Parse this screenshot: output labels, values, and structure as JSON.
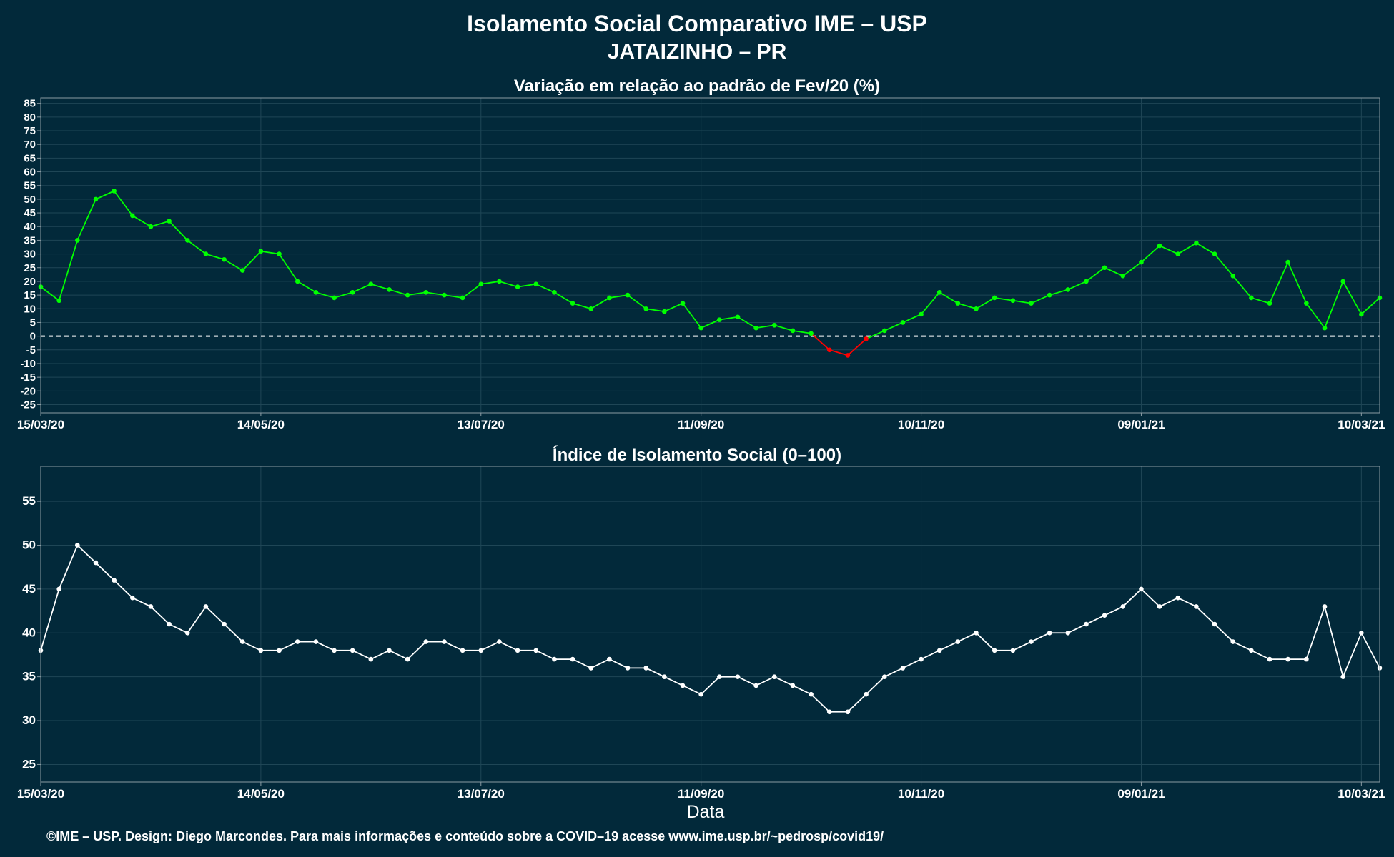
{
  "title": "Isolamento Social Comparativo IME – USP",
  "subtitle": "JATAIZINHO – PR",
  "xlabel": "Data",
  "footer": "©IME – USP. Design: Diego Marcondes. Para mais informações e conteúdo sobre a COVID–19 acesse www.ime.usp.br/~pedrosp/covid19/",
  "colors": {
    "background": "#02293A",
    "positive": "#00FF00",
    "negative": "#FF0000",
    "index": "#FFFFFF"
  },
  "chart_data": [
    {
      "type": "scatter",
      "title": "Variação em relação ao padrão de Fev/20 (%)",
      "x_range": [
        "2020-03-15",
        "2021-03-15"
      ],
      "x_tick_labels": [
        "15/03/20",
        "14/05/20",
        "13/07/20",
        "11/09/20",
        "10/11/20",
        "09/01/21",
        "10/03/21"
      ],
      "ylim": [
        -28,
        87
      ],
      "y_ticks": [
        -25,
        -20,
        -15,
        -10,
        -5,
        0,
        5,
        10,
        15,
        20,
        25,
        30,
        35,
        40,
        45,
        50,
        55,
        60,
        65,
        70,
        75,
        80,
        85
      ],
      "reference_line": 0,
      "grid": true,
      "series": [
        {
          "x": [
            "2020-03-15",
            "2020-03-20",
            "2020-03-25",
            "2020-03-30",
            "2020-04-04",
            "2020-04-09",
            "2020-04-14",
            "2020-04-19",
            "2020-04-24",
            "2020-04-29",
            "2020-05-04",
            "2020-05-09",
            "2020-05-14",
            "2020-05-19",
            "2020-05-24",
            "2020-05-29",
            "2020-06-03",
            "2020-06-08",
            "2020-06-13",
            "2020-06-18",
            "2020-06-23",
            "2020-06-28",
            "2020-07-03",
            "2020-07-08",
            "2020-07-13",
            "2020-07-18",
            "2020-07-23",
            "2020-07-28",
            "2020-08-02",
            "2020-08-07",
            "2020-08-12",
            "2020-08-17",
            "2020-08-22",
            "2020-08-27",
            "2020-09-01",
            "2020-09-06",
            "2020-09-11",
            "2020-09-16",
            "2020-09-21",
            "2020-09-26",
            "2020-10-01",
            "2020-10-06",
            "2020-10-11",
            "2020-10-16",
            "2020-10-21",
            "2020-10-26",
            "2020-10-31",
            "2020-11-05",
            "2020-11-10",
            "2020-11-15",
            "2020-11-20",
            "2020-11-25",
            "2020-11-30",
            "2020-12-05",
            "2020-12-10",
            "2020-12-15",
            "2020-12-20",
            "2020-12-25",
            "2020-12-30",
            "2021-01-04",
            "2021-01-09",
            "2021-01-14",
            "2021-01-19",
            "2021-01-24",
            "2021-01-29",
            "2021-02-03",
            "2021-02-08",
            "2021-02-13",
            "2021-02-18",
            "2021-02-23",
            "2021-02-28",
            "2021-03-05",
            "2021-03-10",
            "2021-03-15"
          ],
          "values": [
            18,
            13,
            35,
            50,
            53,
            44,
            40,
            42,
            35,
            30,
            28,
            24,
            31,
            30,
            20,
            16,
            14,
            16,
            19,
            17,
            15,
            16,
            15,
            14,
            19,
            20,
            18,
            19,
            16,
            12,
            10,
            14,
            15,
            10,
            9,
            12,
            3,
            6,
            7,
            3,
            4,
            2,
            1,
            -5,
            -7,
            -1,
            2,
            5,
            8,
            16,
            12,
            10,
            14,
            13,
            12,
            15,
            17,
            20,
            25,
            22,
            27,
            33,
            30,
            34,
            30,
            22,
            14,
            12,
            27,
            12,
            3,
            20,
            8,
            14
          ],
          "name": ""
        }
      ]
    },
    {
      "type": "scatter",
      "title": "Índice de Isolamento Social (0–100)",
      "x_range": [
        "2020-03-15",
        "2021-03-15"
      ],
      "x_tick_labels": [
        "15/03/20",
        "14/05/20",
        "13/07/20",
        "11/09/20",
        "10/11/20",
        "09/01/21",
        "10/03/21"
      ],
      "ylim": [
        23,
        59
      ],
      "y_ticks": [
        25,
        30,
        35,
        40,
        45,
        50,
        55
      ],
      "grid": true,
      "series": [
        {
          "x": [
            "2020-03-15",
            "2020-03-20",
            "2020-03-25",
            "2020-03-30",
            "2020-04-04",
            "2020-04-09",
            "2020-04-14",
            "2020-04-19",
            "2020-04-24",
            "2020-04-29",
            "2020-05-04",
            "2020-05-09",
            "2020-05-14",
            "2020-05-19",
            "2020-05-24",
            "2020-05-29",
            "2020-06-03",
            "2020-06-08",
            "2020-06-13",
            "2020-06-18",
            "2020-06-23",
            "2020-06-28",
            "2020-07-03",
            "2020-07-08",
            "2020-07-13",
            "2020-07-18",
            "2020-07-23",
            "2020-07-28",
            "2020-08-02",
            "2020-08-07",
            "2020-08-12",
            "2020-08-17",
            "2020-08-22",
            "2020-08-27",
            "2020-09-01",
            "2020-09-06",
            "2020-09-11",
            "2020-09-16",
            "2020-09-21",
            "2020-09-26",
            "2020-10-01",
            "2020-10-06",
            "2020-10-11",
            "2020-10-16",
            "2020-10-21",
            "2020-10-26",
            "2020-10-31",
            "2020-11-05",
            "2020-11-10",
            "2020-11-15",
            "2020-11-20",
            "2020-11-25",
            "2020-11-30",
            "2020-12-05",
            "2020-12-10",
            "2020-12-15",
            "2020-12-20",
            "2020-12-25",
            "2020-12-30",
            "2021-01-04",
            "2021-01-09",
            "2021-01-14",
            "2021-01-19",
            "2021-01-24",
            "2021-01-29",
            "2021-02-03",
            "2021-02-08",
            "2021-02-13",
            "2021-02-18",
            "2021-02-23",
            "2021-02-28",
            "2021-03-05",
            "2021-03-10",
            "2021-03-15"
          ],
          "values": [
            38,
            45,
            50,
            48,
            46,
            44,
            43,
            41,
            40,
            43,
            41,
            39,
            38,
            38,
            39,
            39,
            38,
            38,
            37,
            38,
            37,
            39,
            39,
            38,
            38,
            39,
            38,
            38,
            37,
            37,
            36,
            37,
            36,
            36,
            35,
            34,
            33,
            35,
            35,
            34,
            35,
            34,
            33,
            31,
            31,
            33,
            35,
            36,
            37,
            38,
            39,
            40,
            38,
            38,
            39,
            40,
            40,
            41,
            42,
            43,
            45,
            43,
            44,
            43,
            41,
            39,
            38,
            37,
            37,
            37,
            43,
            35,
            40,
            36
          ],
          "name": ""
        }
      ]
    }
  ]
}
